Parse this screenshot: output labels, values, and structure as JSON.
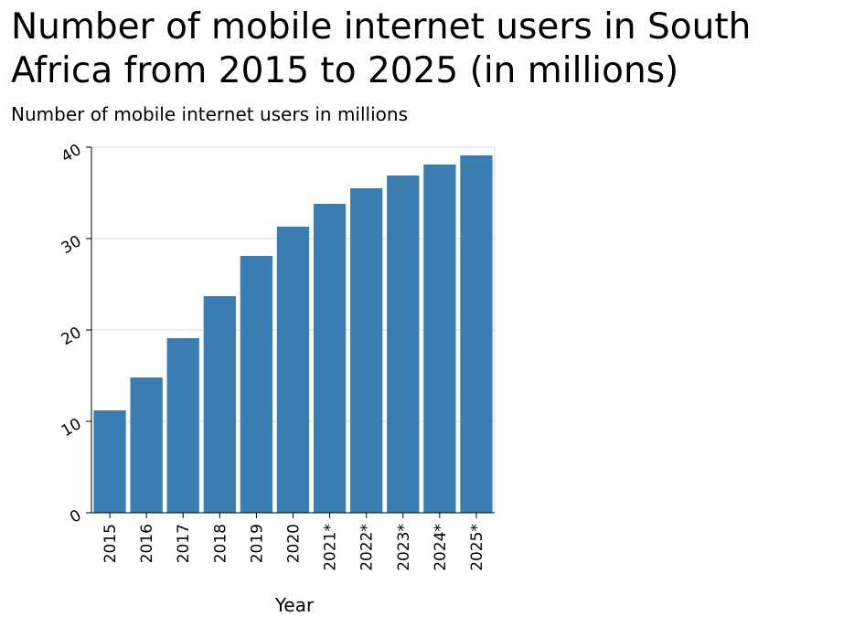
{
  "chart_data": {
    "type": "bar",
    "title": "Number of mobile internet users in South Africa from 2015 to 2025 (in millions)",
    "xlabel": "Year",
    "ylabel": "Number of mobile internet users in millions",
    "categories": [
      "2015",
      "2016",
      "2017",
      "2018",
      "2019",
      "2020",
      "2021*",
      "2022*",
      "2023*",
      "2024*",
      "2025*"
    ],
    "values": [
      11.2,
      14.8,
      19.1,
      23.7,
      28.1,
      31.3,
      33.8,
      35.5,
      36.9,
      38.1,
      39.1
    ],
    "ylim": [
      0,
      40
    ],
    "yticks": [
      "0",
      "10",
      "20",
      "30",
      "40"
    ],
    "grid": true,
    "bar_color": "#3a7db3",
    "grid_color": "#d9d9d9"
  }
}
